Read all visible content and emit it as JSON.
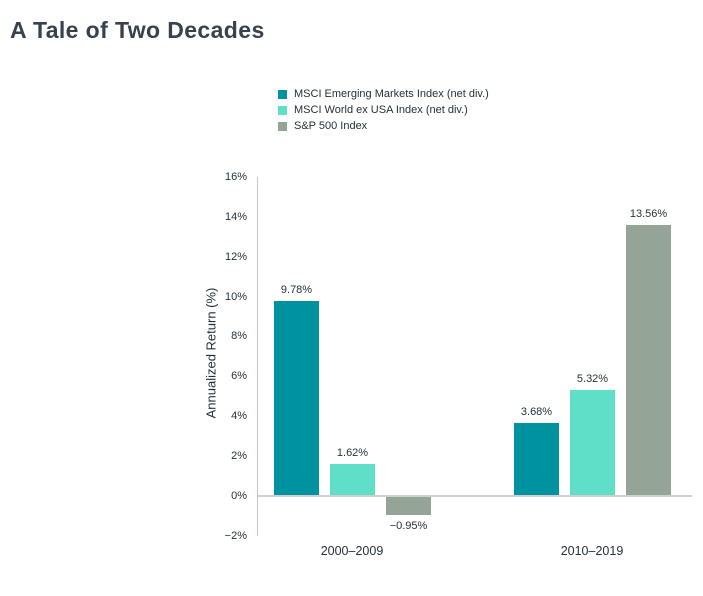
{
  "page": {
    "title": "A Tale of Two Decades"
  },
  "chart_data": {
    "type": "bar",
    "title": "A Tale of Two Decades",
    "categories": [
      "2000–2009",
      "2010–2019"
    ],
    "series": [
      {
        "name": "MSCI Emerging Markets Index (net div.)",
        "color": "#00929E",
        "values": [
          9.78,
          3.68
        ],
        "value_labels": [
          "9.78%",
          "3.68%"
        ]
      },
      {
        "name": "MSCI World ex USA Index (net div.)",
        "color": "#5FDFC8",
        "values": [
          1.62,
          5.32
        ],
        "value_labels": [
          "1.62%",
          "5.32%"
        ]
      },
      {
        "name": "S&P 500 Index",
        "color": "#94A497",
        "values": [
          -0.95,
          13.56
        ],
        "value_labels": [
          "−0.95%",
          "13.56%"
        ]
      }
    ],
    "xlabel": "",
    "ylabel": "Annualized Return (%)",
    "ylim": [
      -2,
      16
    ],
    "ytick_step": 2,
    "ytick_labels": [
      "−2%",
      "0%",
      "2%",
      "4%",
      "6%",
      "8%",
      "10%",
      "12%",
      "14%",
      "16%"
    ],
    "legend_position": "top-center",
    "grid": "zero-baseline-only",
    "colors": {
      "axis_line": "#C6C8C8",
      "zero_line": "#CFD1D1",
      "text": "#25303A",
      "title": "#37424E"
    }
  }
}
